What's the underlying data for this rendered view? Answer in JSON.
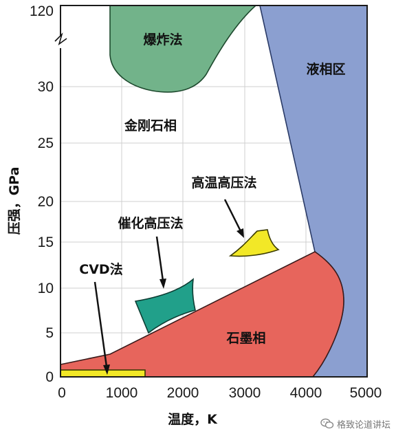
{
  "chart_data": {
    "type": "diagram",
    "xlabel": "温度，K",
    "ylabel": "压强，GPa",
    "x_ticks": [
      "0",
      "1000",
      "2000",
      "3000",
      "4000",
      "5000"
    ],
    "y_ticks": [
      "0",
      "5",
      "10",
      "15",
      "20",
      "25",
      "30",
      "120"
    ],
    "regions": [
      {
        "label": "爆炸法",
        "color": "#72b38a"
      },
      {
        "label": "液相区",
        "color": "#8b9fd0"
      },
      {
        "label": "金刚石相",
        "color": "#ffffff"
      },
      {
        "label": "石墨相",
        "color": "#e7655c"
      },
      {
        "label": "高温高压法",
        "color": "#f2e827"
      },
      {
        "label": "催化高压法",
        "color": "#21a08a"
      },
      {
        "label": "CVD法",
        "color": "#f2e827"
      }
    ],
    "grid": true,
    "axis_break": true
  },
  "watermark": {
    "text": "格致论道讲坛"
  }
}
